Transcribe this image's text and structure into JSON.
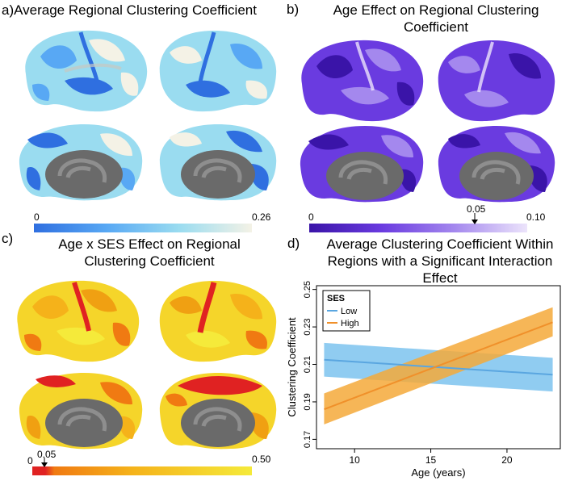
{
  "panels": {
    "a": {
      "label": "a)",
      "title": "Average Regional Clustering Coefficient",
      "cbar_min": "0",
      "cbar_max": "0.26",
      "colors": [
        "#2f6fe0",
        "#58a8f4",
        "#9adcf0",
        "#f4f2e6"
      ]
    },
    "b": {
      "label": "b)",
      "title_line1": "Age Effect on Regional Clustering",
      "title_line2": "Coefficient",
      "cbar_min": "0",
      "cbar_mid": "0.05",
      "cbar_max": "0.10",
      "colors": [
        "#3a14a8",
        "#6a3be0",
        "#a488ee",
        "#ece4fb"
      ]
    },
    "c": {
      "label": "c)",
      "title_line1": "Age x SES Effect on Regional",
      "title_line2": "Clustering Coefficient",
      "cbar_min": "0",
      "cbar_mid": "0.05",
      "cbar_max": "0.50",
      "colors": [
        "#e02222",
        "#f07a12",
        "#f5b21a",
        "#f5ea3a"
      ]
    },
    "d": {
      "label": "d)",
      "title_line1": "Average Clustering Coefficient Within",
      "title_line2": "Regions with a Significant Interaction",
      "title_line3": "Effect"
    }
  },
  "chart_data": {
    "type": "line",
    "title": "Average Clustering Coefficient Within Regions with a Significant Interaction Effect",
    "xlabel": "Age (years)",
    "ylabel": "Clustering Coefficient",
    "xlim": [
      7.5,
      23.5
    ],
    "ylim": [
      0.165,
      0.252
    ],
    "xticks": [
      10,
      15,
      20
    ],
    "yticks": [
      0.17,
      0.19,
      0.21,
      0.23,
      0.25
    ],
    "xtick_labels": [
      "10",
      "15",
      "20"
    ],
    "ytick_labels": [
      "0.17",
      "0.19",
      "0.21",
      "0.23",
      "0.25"
    ],
    "legend": {
      "title": "SES",
      "position": "top-left"
    },
    "series": [
      {
        "name": "Low",
        "color": "#5aa6e0",
        "band_color": "#7cc3ee",
        "x": [
          8,
          23
        ],
        "y": [
          0.2125,
          0.2045
        ],
        "ci_lower": [
          0.2035,
          0.1955
        ],
        "ci_upper": [
          0.2215,
          0.2135
        ]
      },
      {
        "name": "High",
        "color": "#f0902a",
        "band_color": "#f5a93a",
        "x": [
          8,
          23
        ],
        "y": [
          0.186,
          0.2325
        ],
        "ci_lower": [
          0.178,
          0.225
        ],
        "ci_upper": [
          0.1945,
          0.2405
        ]
      }
    ]
  }
}
